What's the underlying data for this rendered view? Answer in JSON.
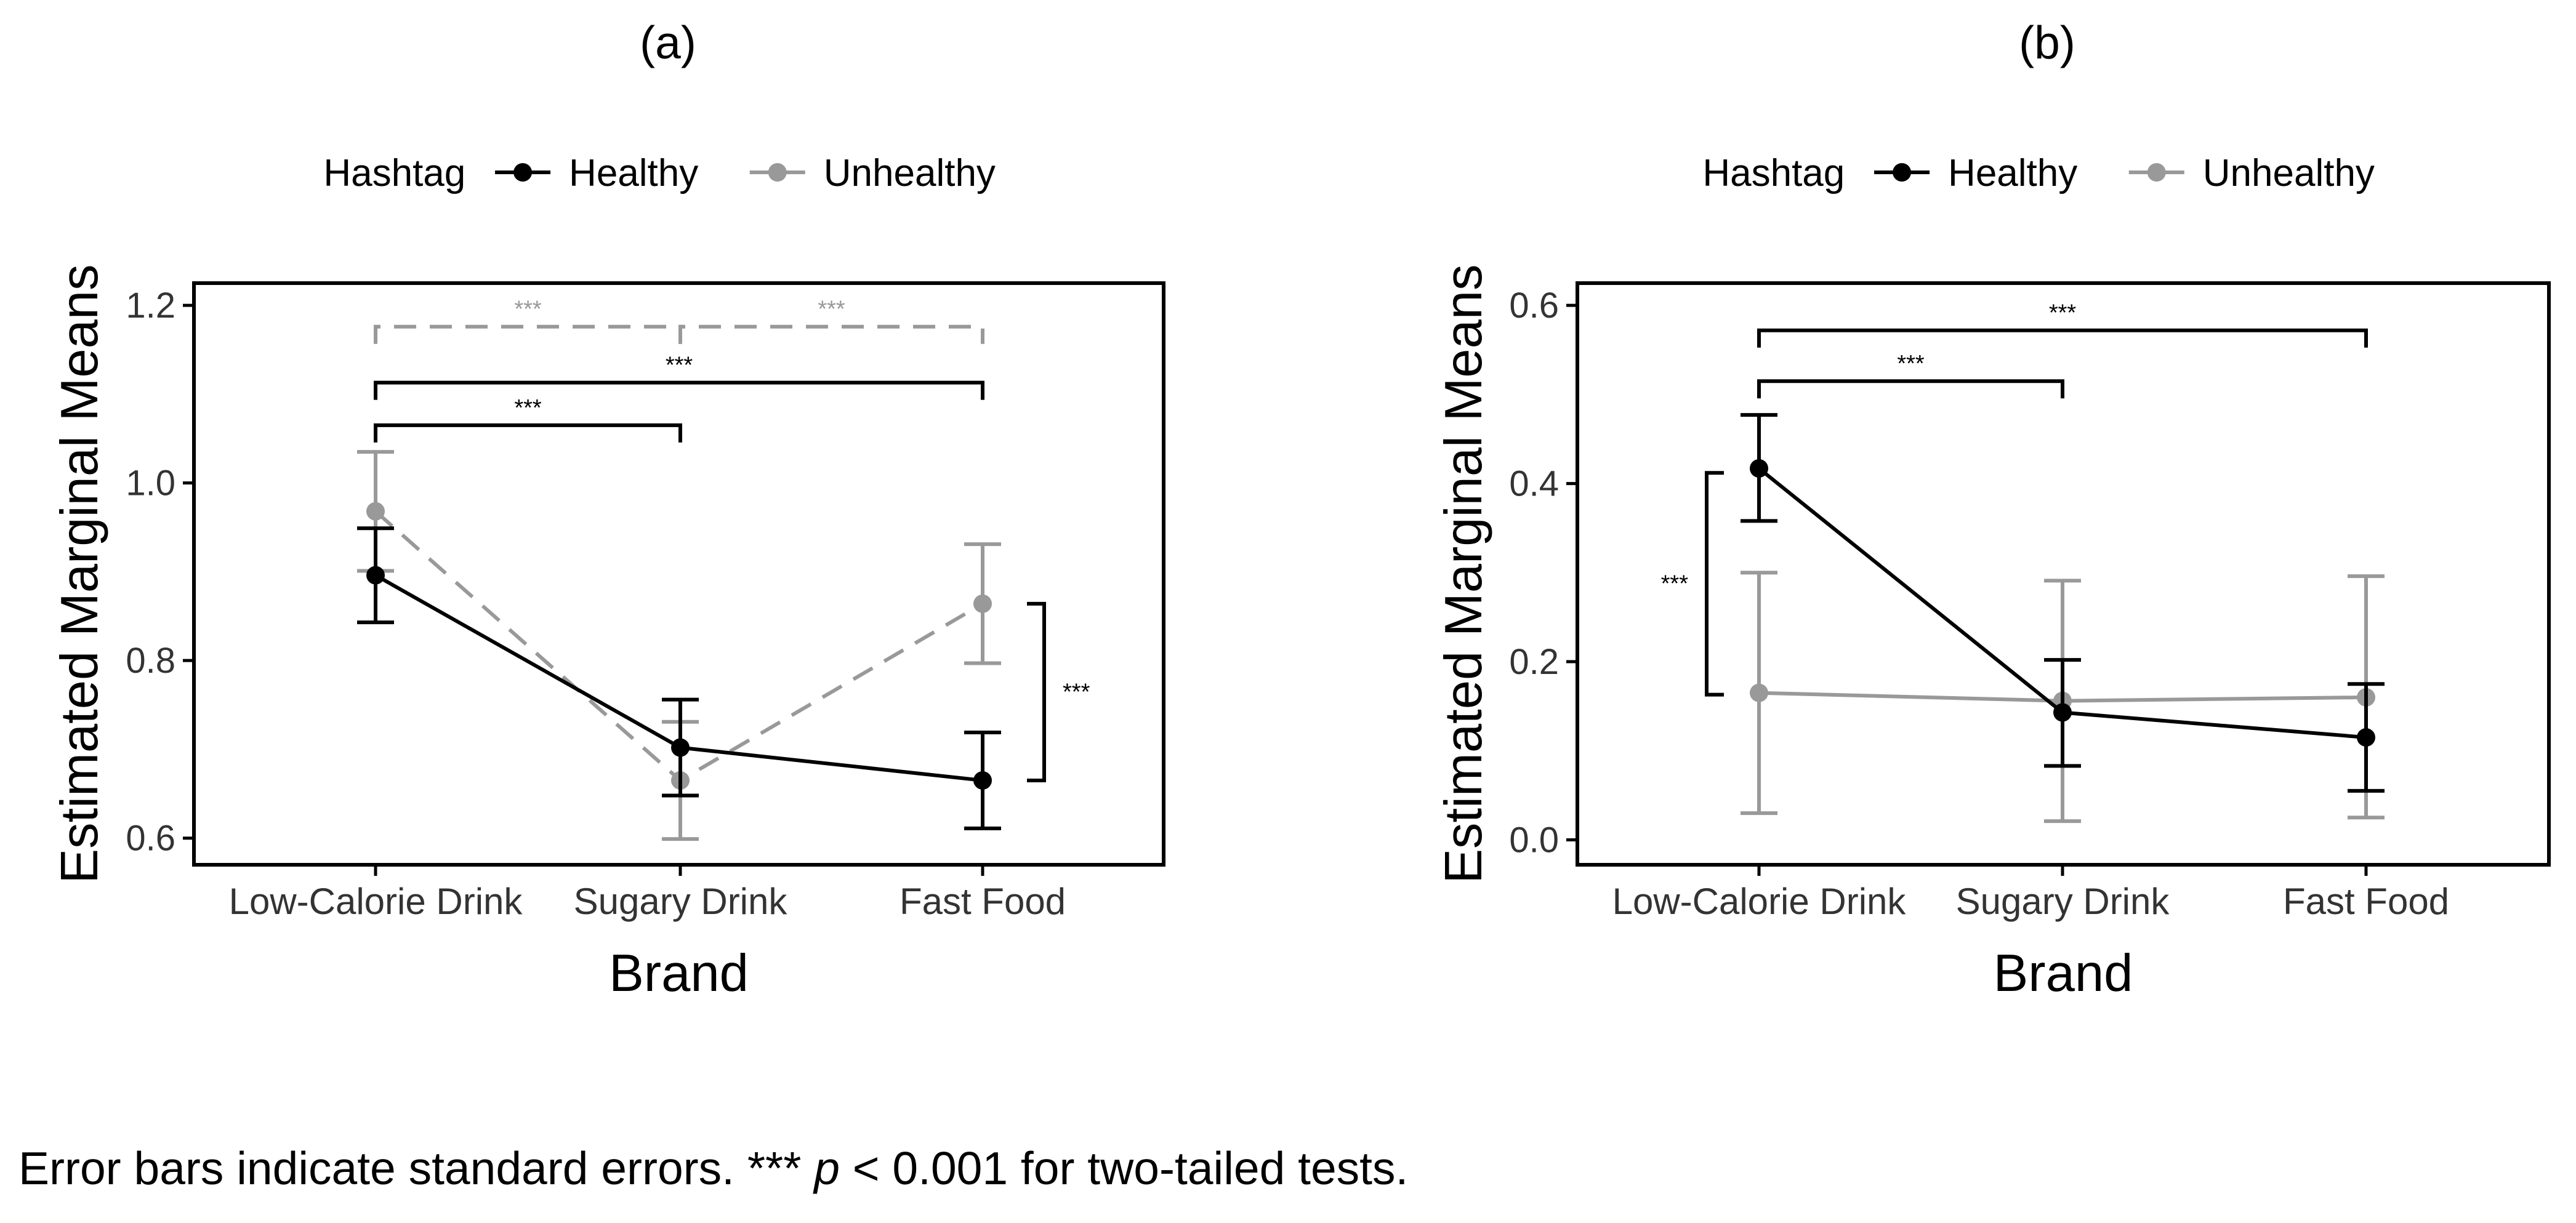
{
  "figure_caption": {
    "prefix": "Error bars indicate standard errors. *** ",
    "p_symbol": "p",
    "suffix": " < 0.001 for two-tailed tests."
  },
  "colors": {
    "healthy": "#000000",
    "unhealthy": "#999999"
  },
  "chart_data": [
    {
      "panel_label": "(a)",
      "type": "line",
      "xlabel": "Brand",
      "ylabel": "Estimated Marginal Means",
      "legend_title": "Hashtag",
      "legend_position": "top",
      "categories": [
        "Low-Calorie Drink",
        "Sugary Drink",
        "Fast Food"
      ],
      "ylim": [
        0.57,
        1.225
      ],
      "yticks": [
        0.6,
        0.8,
        1.0,
        1.2
      ],
      "ytick_labels": [
        "0.6",
        "0.8",
        "1.0",
        "1.2"
      ],
      "series": [
        {
          "name": "Healthy",
          "line_style": "solid",
          "values": [
            0.896,
            0.702,
            0.665
          ],
          "lower": [
            0.843,
            0.648,
            0.611
          ],
          "upper": [
            0.949,
            0.756,
            0.719
          ]
        },
        {
          "name": "Unhealthy",
          "line_style": "dashed",
          "values": [
            0.968,
            0.665,
            0.864
          ],
          "lower": [
            0.901,
            0.599,
            0.797
          ],
          "upper": [
            1.035,
            0.731,
            0.931
          ]
        }
      ],
      "annotations": [
        {
          "kind": "horizontal",
          "from": 0,
          "to": 1,
          "y": 1.176,
          "label": "***",
          "series": "Unhealthy",
          "dashed": true
        },
        {
          "kind": "horizontal",
          "from": 1,
          "to": 2,
          "y": 1.176,
          "label": "***",
          "series": "Unhealthy",
          "dashed": true
        },
        {
          "kind": "horizontal",
          "from": 0,
          "to": 2,
          "y": 1.113,
          "label": "***",
          "series": "Healthy",
          "dashed": false
        },
        {
          "kind": "horizontal",
          "from": 0,
          "to": 1,
          "y": 1.065,
          "label": "***",
          "series": "Healthy",
          "dashed": false
        },
        {
          "kind": "vertical",
          "at": 2,
          "side": "right",
          "y1": 0.864,
          "y2": 0.665,
          "label": "***",
          "series": "Healthy",
          "dashed": false
        }
      ]
    },
    {
      "panel_label": "(b)",
      "type": "line",
      "xlabel": "Brand",
      "ylabel": "Estimated Marginal Means",
      "legend_title": "Hashtag",
      "legend_position": "top",
      "categories": [
        "Low-Calorie Drink",
        "Sugary Drink",
        "Fast Food"
      ],
      "ylim": [
        -0.028,
        0.625
      ],
      "yticks": [
        0.0,
        0.2,
        0.4,
        0.6
      ],
      "ytick_labels": [
        "0.0",
        "0.2",
        "0.4",
        "0.6"
      ],
      "series": [
        {
          "name": "Healthy",
          "line_style": "solid",
          "values": [
            0.417,
            0.143,
            0.115
          ],
          "lower": [
            0.358,
            0.083,
            0.055
          ],
          "upper": [
            0.477,
            0.202,
            0.175
          ]
        },
        {
          "name": "Unhealthy",
          "line_style": "solid",
          "values": [
            0.165,
            0.156,
            0.16
          ],
          "lower": [
            0.03,
            0.021,
            0.025
          ],
          "upper": [
            0.3,
            0.291,
            0.296
          ]
        }
      ],
      "annotations": [
        {
          "kind": "horizontal",
          "from": 0,
          "to": 2,
          "y": 0.572,
          "label": "***",
          "series": "Healthy",
          "dashed": false
        },
        {
          "kind": "horizontal",
          "from": 0,
          "to": 1,
          "y": 0.515,
          "label": "***",
          "series": "Healthy",
          "dashed": false
        },
        {
          "kind": "vertical",
          "at": 0,
          "side": "left",
          "y1": 0.412,
          "y2": 0.163,
          "label": "***",
          "series": "Healthy",
          "dashed": false
        }
      ]
    }
  ]
}
